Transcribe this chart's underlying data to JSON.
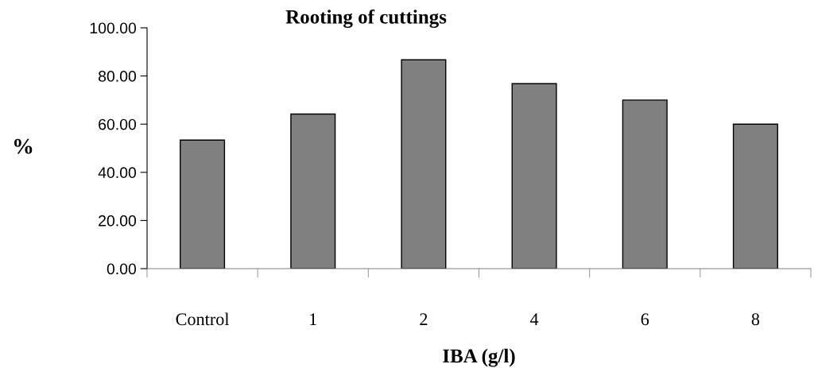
{
  "chart_data": {
    "type": "bar",
    "title": "Rooting of cuttings",
    "xlabel": "IBA (g/l)",
    "ylabel": "%",
    "categories": [
      "Control",
      "1",
      "2",
      "4",
      "6",
      "8"
    ],
    "values": [
      53.4,
      64.2,
      86.7,
      76.8,
      70.0,
      60.0
    ],
    "color": "#808080",
    "ylim": [
      0,
      100
    ],
    "yticks": [
      {
        "value": 0,
        "label": "0.00"
      },
      {
        "value": 20,
        "label": "20.00"
      },
      {
        "value": 40,
        "label": "40.00"
      },
      {
        "value": 60,
        "label": "60.00"
      },
      {
        "value": 80,
        "label": "80.00"
      },
      {
        "value": 100,
        "label": "100.00"
      }
    ],
    "grid": false,
    "legend": false
  }
}
